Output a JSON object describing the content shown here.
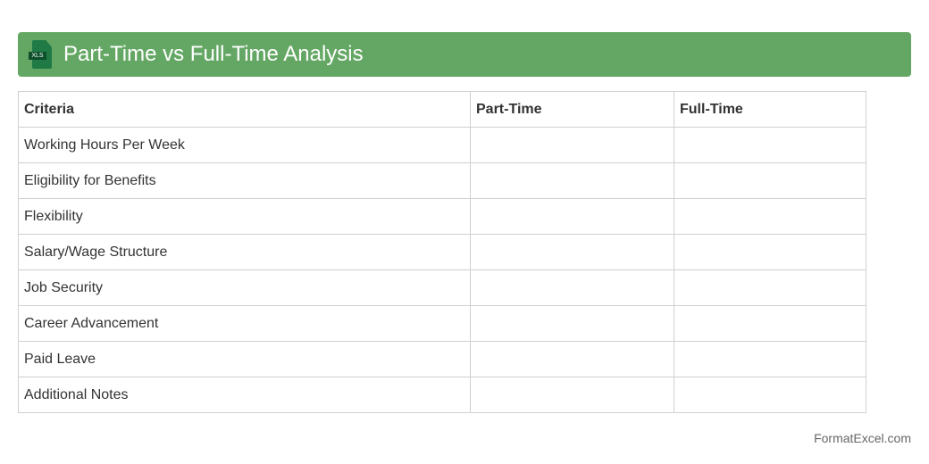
{
  "header": {
    "title": "Part-Time vs Full-Time Analysis",
    "icon": "xls-file-icon",
    "icon_label": "XLS",
    "color": "#64a764"
  },
  "table": {
    "columns": [
      "Criteria",
      "Part-Time",
      "Full-Time"
    ],
    "rows": [
      [
        "Working Hours Per Week",
        "",
        ""
      ],
      [
        "Eligibility for Benefits",
        "",
        ""
      ],
      [
        "Flexibility",
        "",
        ""
      ],
      [
        "Salary/Wage Structure",
        "",
        ""
      ],
      [
        "Job Security",
        "",
        ""
      ],
      [
        "Career Advancement",
        "",
        ""
      ],
      [
        "Paid Leave",
        "",
        ""
      ],
      [
        "Additional Notes",
        "",
        ""
      ]
    ]
  },
  "footer": {
    "text": "FormatExcel.com"
  }
}
